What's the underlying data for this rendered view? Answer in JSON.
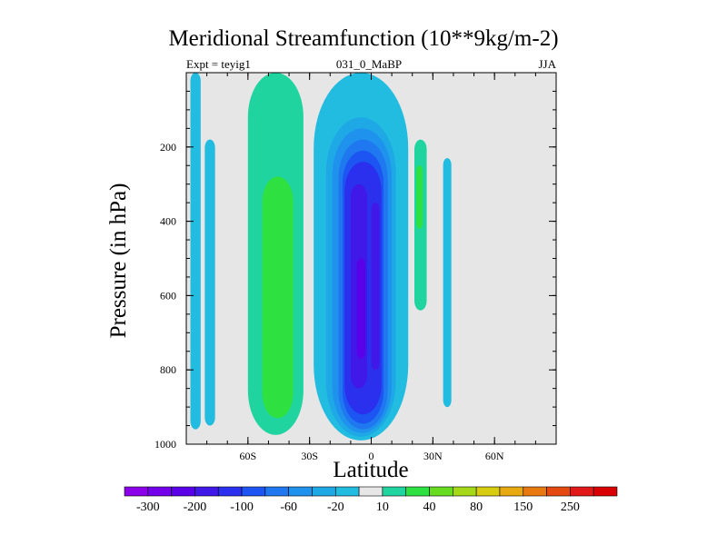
{
  "chart_data": {
    "type": "heatmap",
    "title": "Meridional Streamfunction (10**9kg/m-2)",
    "subtitle_left": "Expt = teyig1",
    "subtitle_center": "031_0_MaBP",
    "subtitle_right": "JJA",
    "xlabel": "Latitude",
    "ylabel": "Pressure (in hPa)",
    "xlim": [
      -90,
      90
    ],
    "ylim": [
      1000,
      0
    ],
    "x_ticks": [
      {
        "value": -60,
        "label": "60S"
      },
      {
        "value": -30,
        "label": "30S"
      },
      {
        "value": 0,
        "label": "0"
      },
      {
        "value": 30,
        "label": "30N"
      },
      {
        "value": 60,
        "label": "60N"
      }
    ],
    "y_ticks": [
      {
        "value": 200,
        "label": "200"
      },
      {
        "value": 400,
        "label": "400"
      },
      {
        "value": 600,
        "label": "600"
      },
      {
        "value": 800,
        "label": "800"
      },
      {
        "value": 1000,
        "label": "1000"
      }
    ],
    "background_color": "#e6e6e6",
    "contour_levels": [
      -300,
      -250,
      -200,
      -150,
      -100,
      -80,
      -60,
      -40,
      -20,
      -10,
      10,
      20,
      40,
      60,
      80,
      100,
      150,
      200,
      250,
      300
    ],
    "colorbar": {
      "colors": [
        "#8b00e8",
        "#7200e8",
        "#5a00e8",
        "#4018e8",
        "#2a30ee",
        "#1c55f2",
        "#2078f0",
        "#1e92ec",
        "#1ea8e6",
        "#22bce0",
        "#e6e6e6",
        "#20d4a0",
        "#2ee040",
        "#66dc20",
        "#a4d818",
        "#d8cc10",
        "#e8a810",
        "#e87810",
        "#e44a10",
        "#e01818",
        "#d80000"
      ],
      "labels": [
        {
          "index": 1,
          "text": "-300"
        },
        {
          "index": 3,
          "text": "-200"
        },
        {
          "index": 5,
          "text": "-100"
        },
        {
          "index": 7,
          "text": "-60"
        },
        {
          "index": 9,
          "text": "-20"
        },
        {
          "index": 11,
          "text": "10"
        },
        {
          "index": 13,
          "text": "40"
        },
        {
          "index": 15,
          "text": "80"
        },
        {
          "index": 17,
          "text": "150"
        },
        {
          "index": 19,
          "text": "250"
        }
      ]
    },
    "features": [
      {
        "name": "sh-polar-cell-band-1",
        "value": -20,
        "lat": [
          -88,
          -83
        ],
        "p": [
          0,
          960
        ],
        "color": "#22bce0"
      },
      {
        "name": "sh-polar-cell-band-2",
        "value": -20,
        "lat": [
          -81,
          -76
        ],
        "p": [
          180,
          950
        ],
        "color": "#22bce0"
      },
      {
        "name": "sh-ferrel-cell-outer",
        "value": 10,
        "lat": [
          -60,
          -33
        ],
        "p": [
          0,
          975
        ],
        "color": "#20d4a0"
      },
      {
        "name": "sh-ferrel-cell-core",
        "value": 20,
        "lat": [
          -53,
          -38
        ],
        "p": [
          280,
          930
        ],
        "color": "#2ee040"
      },
      {
        "name": "tropics-negative-outer",
        "value": -20,
        "lat": [
          -28,
          18
        ],
        "p": [
          0,
          990
        ],
        "color": "#22bce0"
      },
      {
        "name": "tropics-negative-level-2",
        "value": -40,
        "lat": [
          -22,
          12
        ],
        "p": [
          120,
          980
        ],
        "color": "#1ea8e6"
      },
      {
        "name": "tropics-negative-level-3",
        "value": -60,
        "lat": [
          -19,
          10
        ],
        "p": [
          150,
          970
        ],
        "color": "#1e92ec"
      },
      {
        "name": "tropics-negative-level-4",
        "value": -80,
        "lat": [
          -16,
          8
        ],
        "p": [
          180,
          960
        ],
        "color": "#2078f0"
      },
      {
        "name": "tropics-negative-level-5",
        "value": -100,
        "lat": [
          -14,
          6
        ],
        "p": [
          210,
          945
        ],
        "color": "#1c55f2"
      },
      {
        "name": "hadley-cell-core",
        "value": -150,
        "lat": [
          -13,
          5
        ],
        "p": [
          240,
          920
        ],
        "color": "#2a30ee"
      },
      {
        "name": "hadley-cell-max-1",
        "value": -200,
        "lat": [
          -10,
          -2
        ],
        "p": [
          300,
          850
        ],
        "color": "#4018e8"
      },
      {
        "name": "hadley-cell-max-2",
        "value": -200,
        "lat": [
          0,
          4
        ],
        "p": [
          350,
          800
        ],
        "color": "#4018e8"
      },
      {
        "name": "hadley-cell-max-inner",
        "value": -250,
        "lat": [
          -7,
          -3
        ],
        "p": [
          500,
          770
        ],
        "color": "#5a00e8"
      },
      {
        "name": "nh-ferrel-cell",
        "value": 10,
        "lat": [
          21,
          27
        ],
        "p": [
          180,
          640
        ],
        "color": "#20d4a0"
      },
      {
        "name": "nh-ferrel-cell-core",
        "value": 20,
        "lat": [
          22,
          25
        ],
        "p": [
          250,
          420
        ],
        "color": "#2ee040"
      },
      {
        "name": "nh-negative-band",
        "value": -20,
        "lat": [
          35,
          39
        ],
        "p": [
          230,
          900
        ],
        "color": "#22bce0"
      }
    ]
  }
}
